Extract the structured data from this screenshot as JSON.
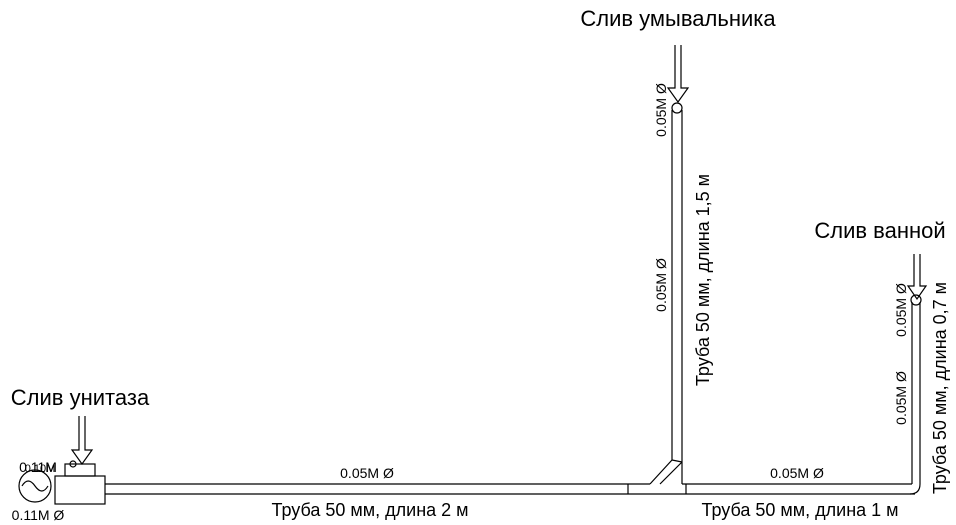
{
  "drains": [
    "Слив умывальника",
    "Слив ванной",
    "Слив унитаза"
  ],
  "diameters": [
    "0.05M Ø",
    "0.05M Ø",
    "0.05M Ø",
    "0.05M Ø",
    "0.05M Ø",
    "0.05M Ø",
    "0.11M Ø",
    "0.11M",
    "0.10M"
  ],
  "pipes": [
    "Труба 50 мм, длина 1,5 м",
    "Труба 50 мм, длина 0,7 м",
    "Труба 50 мм, длина 2 м",
    "Труба 50 мм, длина 1 м"
  ]
}
